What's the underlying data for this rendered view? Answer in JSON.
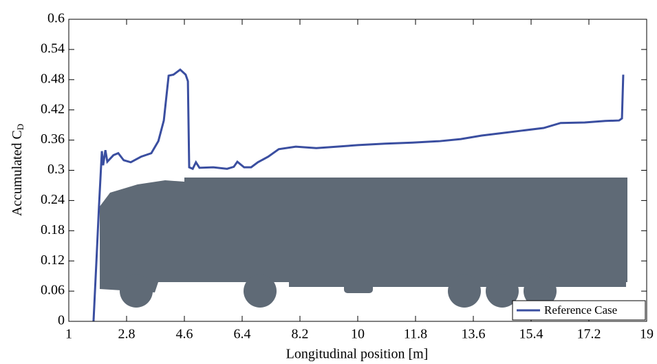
{
  "chart_data": {
    "type": "line",
    "x_label": "Longitudinal position [m]",
    "y_label": "Accumulated C",
    "y_label_sub": "D",
    "xlim": [
      1,
      19
    ],
    "xticks": [
      1,
      2.8,
      4.6,
      6.4,
      8.2,
      10,
      11.8,
      13.6,
      15.4,
      17.2,
      19
    ],
    "ylim": [
      0,
      0.6
    ],
    "yticks": [
      0,
      0.06,
      0.12,
      0.18,
      0.24,
      0.3,
      0.36,
      0.42,
      0.48,
      0.54,
      0.6
    ],
    "legend": "lower right",
    "series": [
      {
        "name": "Reference Case",
        "color": "#3a4ea0",
        "x": [
          1.77,
          1.86,
          1.94,
          2.03,
          2.07,
          2.14,
          2.2,
          2.39,
          2.54,
          2.71,
          2.93,
          3.25,
          3.57,
          3.79,
          3.96,
          4.11,
          4.26,
          4.47,
          4.64,
          4.71,
          4.75,
          4.86,
          4.96,
          5.07,
          5.5,
          5.93,
          6.14,
          6.25,
          6.46,
          6.68,
          6.89,
          7.21,
          7.54,
          8.07,
          8.71,
          9.36,
          10.0,
          10.86,
          11.71,
          12.57,
          13.21,
          13.86,
          14.5,
          15.14,
          15.79,
          16.32,
          17.07,
          17.71,
          18.14,
          18.23,
          18.27
        ],
        "values": [
          0,
          0.119,
          0.228,
          0.338,
          0.31,
          0.34,
          0.317,
          0.33,
          0.334,
          0.32,
          0.316,
          0.327,
          0.334,
          0.358,
          0.399,
          0.488,
          0.49,
          0.5,
          0.49,
          0.477,
          0.306,
          0.303,
          0.316,
          0.305,
          0.306,
          0.303,
          0.307,
          0.317,
          0.306,
          0.306,
          0.316,
          0.327,
          0.342,
          0.347,
          0.344,
          0.347,
          0.35,
          0.353,
          0.355,
          0.358,
          0.362,
          0.369,
          0.374,
          0.379,
          0.384,
          0.394,
          0.395,
          0.398,
          0.399,
          0.403,
          0.49
        ]
      }
    ]
  }
}
